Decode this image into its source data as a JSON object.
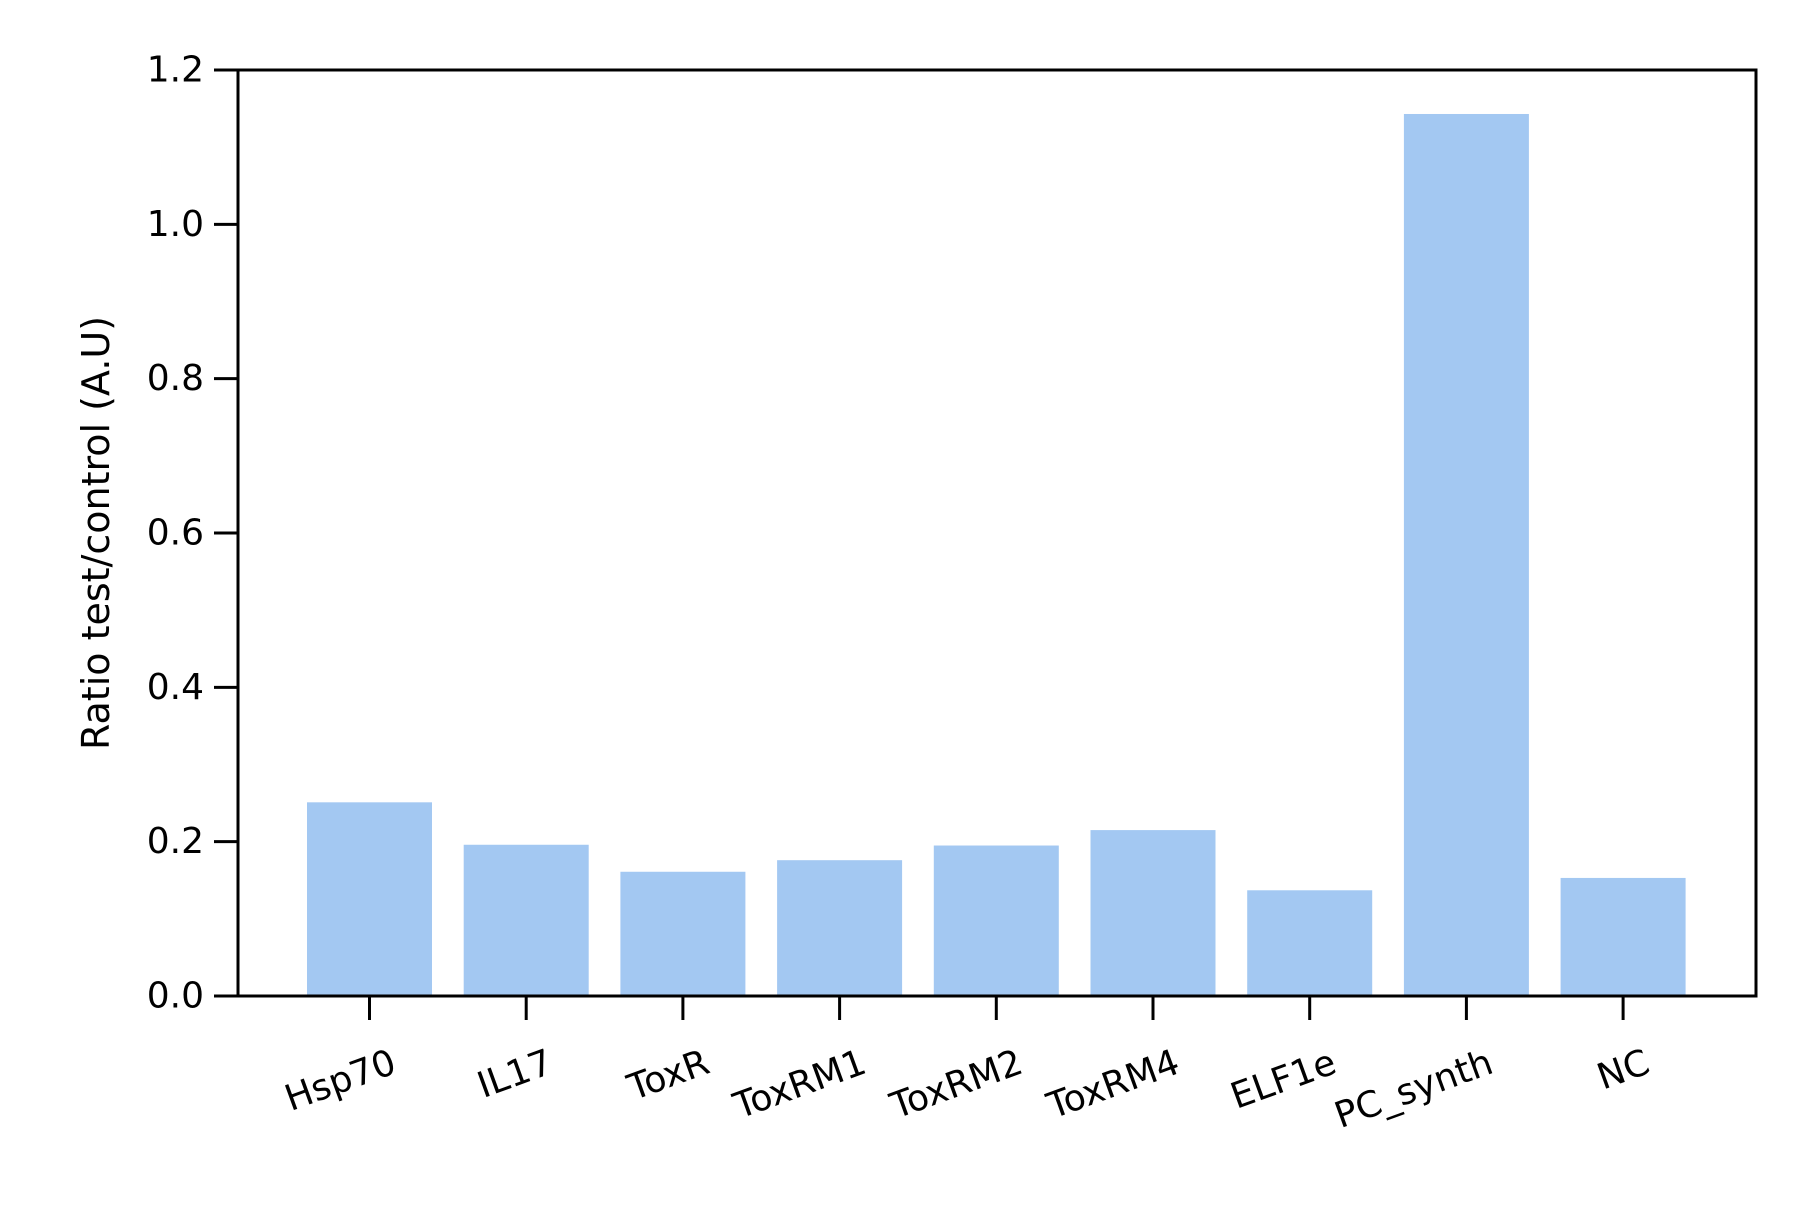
{
  "chart_data": {
    "type": "bar",
    "categories": [
      "Hsp70",
      "IL17",
      "ToxR",
      "ToxRM1",
      "ToxRM2",
      "ToxRM4",
      "ELF1e",
      "PC_synth",
      "NC"
    ],
    "values": [
      0.251,
      0.196,
      0.161,
      0.176,
      0.195,
      0.215,
      0.137,
      1.143,
      0.153
    ],
    "title": "",
    "xlabel": "",
    "ylabel": "Ratio test/control (A.U)",
    "ylim": [
      0,
      1.2
    ],
    "yticks": [
      "0.0",
      "0.2",
      "0.4",
      "0.6",
      "0.8",
      "1.0",
      "1.2"
    ],
    "grid": false,
    "bar_color": "#a3c8f2"
  }
}
